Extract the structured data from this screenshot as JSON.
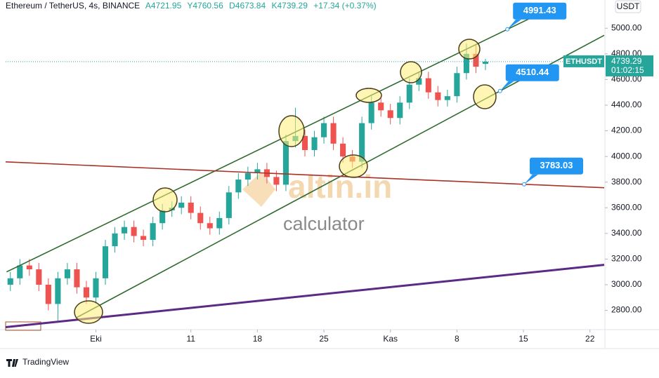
{
  "chart_data": {
    "type": "candlestick",
    "header": {
      "symbol": "Ethereum / TetherUS, 4s, BINANCE",
      "ohlc_labels": [
        "A4721.95",
        "Y4760.56",
        "D4673.84",
        "K4739.29"
      ],
      "change": "+17.34 (+0.37%)"
    },
    "currency": "USDT",
    "price_tag": {
      "name": "ETHUSDT",
      "value": 4739.29,
      "countdown": "01:02:15"
    },
    "watermark": [
      "altin.in",
      "calculator"
    ],
    "footer": "TradingView",
    "x": [
      -9,
      -8,
      -7,
      -6,
      -5,
      -4,
      -3,
      -2,
      -1,
      0,
      1,
      2,
      3,
      4,
      5,
      6,
      7,
      8,
      9,
      10,
      11,
      12,
      13,
      14,
      15,
      16,
      17,
      18,
      19,
      20,
      21,
      22,
      23,
      24,
      25,
      26,
      27,
      28,
      29,
      30,
      31,
      32,
      33,
      34,
      35,
      36,
      37,
      38,
      39,
      40,
      41
    ],
    "open": [
      3000,
      3050,
      3150,
      3120,
      3000,
      2850,
      3050,
      3120,
      2980,
      2900,
      3050,
      3300,
      3400,
      3450,
      3380,
      3350,
      3480,
      3580,
      3600,
      3640,
      3560,
      3480,
      3440,
      3520,
      3720,
      3820,
      3870,
      3900,
      3840,
      3780,
      4120,
      4160,
      4050,
      4150,
      4260,
      4100,
      4000,
      3960,
      4260,
      4420,
      4360,
      4300,
      4420,
      4560,
      4610,
      4500,
      4440,
      4470,
      4650,
      4800,
      4721.95
    ],
    "high": [
      3100,
      3200,
      3200,
      3170,
      3050,
      3100,
      3170,
      3170,
      3030,
      3100,
      3350,
      3450,
      3500,
      3500,
      3430,
      3530,
      3630,
      3650,
      3690,
      3690,
      3610,
      3530,
      3570,
      3770,
      3870,
      3920,
      3950,
      3950,
      3890,
      4170,
      4380,
      4210,
      4200,
      4310,
      4310,
      4150,
      4050,
      4310,
      4470,
      4470,
      4410,
      4470,
      4610,
      4660,
      4660,
      4550,
      4520,
      4700,
      4880,
      4870,
      4760.56
    ],
    "low": [
      2950,
      3000,
      3070,
      2950,
      2800,
      2720,
      3000,
      2930,
      2850,
      2850,
      3000,
      3250,
      3350,
      3330,
      3300,
      3300,
      3430,
      3530,
      3550,
      3510,
      3430,
      3390,
      3390,
      3470,
      3670,
      3770,
      3820,
      3790,
      3730,
      3730,
      4070,
      4000,
      4000,
      4100,
      4050,
      3950,
      3910,
      3910,
      4210,
      4310,
      4250,
      4250,
      4370,
      4510,
      4450,
      4390,
      4390,
      4420,
      4600,
      4650,
      4673.84
    ],
    "close": [
      3050,
      3150,
      3120,
      3000,
      2850,
      3050,
      3120,
      2980,
      2900,
      3050,
      3300,
      3400,
      3450,
      3380,
      3350,
      3480,
      3580,
      3600,
      3640,
      3560,
      3480,
      3440,
      3520,
      3720,
      3820,
      3870,
      3900,
      3840,
      3780,
      4120,
      4160,
      4050,
      4150,
      4260,
      4100,
      4000,
      3960,
      4260,
      4420,
      4360,
      4300,
      4420,
      4560,
      4610,
      4500,
      4440,
      4470,
      4650,
      4800,
      4700,
      4739.29
    ],
    "up_color": "#26a69a",
    "down_color": "#ef5350",
    "trendlines": [
      {
        "color": "#2e6b2e",
        "x": [
          -9.4,
          48.4
        ],
        "y": [
          3100,
          5174
        ],
        "label": 4991.43
      },
      {
        "color": "#2e6b2e",
        "x": [
          -2,
          53.5
        ],
        "y": [
          2745,
          4945
        ],
        "label": 4510.44
      },
      {
        "color": "#a83226",
        "x": [
          -9.5,
          53.5
        ],
        "y": [
          3958,
          3756
        ],
        "label": 3783.03
      },
      {
        "color": "#5b2a86",
        "x": [
          -9.5,
          53.5
        ],
        "y": [
          2669,
          3155
        ]
      }
    ],
    "xlim": [
      -9.5,
      53.5
    ],
    "xticks": [
      {
        "value": 0,
        "label": "Eki"
      },
      {
        "value": 10,
        "label": "11"
      },
      {
        "value": 17,
        "label": "18"
      },
      {
        "value": 24,
        "label": "25"
      },
      {
        "value": 31,
        "label": "Kas"
      },
      {
        "value": 38,
        "label": "8"
      },
      {
        "value": 45,
        "label": "15"
      },
      {
        "value": 52,
        "label": "22"
      }
    ],
    "ylim": [
      2650,
      5220
    ],
    "yticks": [
      {
        "value": 2800,
        "label": "2800.00"
      },
      {
        "value": 3000,
        "label": "3000.00"
      },
      {
        "value": 3200,
        "label": "3200.00"
      },
      {
        "value": 3400,
        "label": "3400.00"
      },
      {
        "value": 3600,
        "label": "3600.00"
      },
      {
        "value": 3800,
        "label": "3800.00"
      },
      {
        "value": 4000,
        "label": "4000.00"
      },
      {
        "value": 4200,
        "label": "4200.00"
      },
      {
        "value": 4400,
        "label": "4400.00"
      },
      {
        "value": 4600,
        "label": "4600.00"
      },
      {
        "value": 4800,
        "label": "4800.00"
      },
      {
        "value": 5000,
        "label": "5000.00"
      }
    ]
  }
}
